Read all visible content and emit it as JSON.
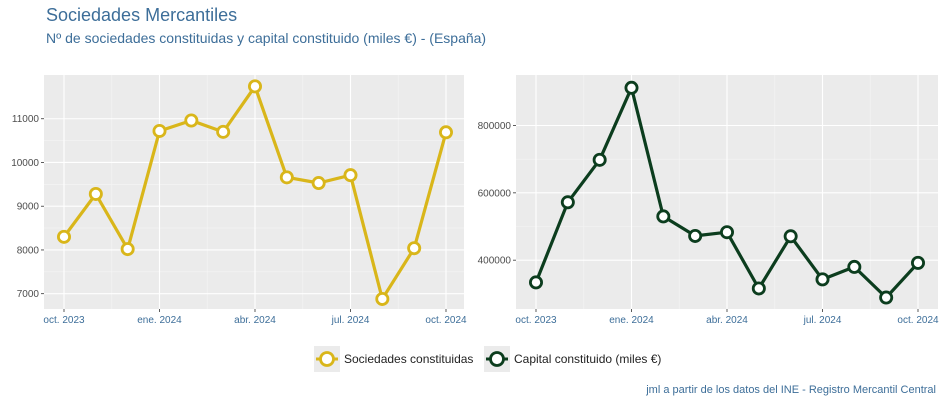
{
  "title": "Sociedades Mercantiles",
  "subtitle": "Nº de sociedades constituidas y capital constituido (miles €) - (España)",
  "caption": "jml a partir de los datos del INE - Registro Mercantil Central",
  "legend": [
    {
      "label": "Sociedades constituidas",
      "color": "#d9b61a"
    },
    {
      "label": "Capital constituido (miles €)",
      "color": "#0c3d1e"
    }
  ],
  "chart_data": [
    {
      "type": "line",
      "title": "Sociedades constituidas",
      "x": [
        "2023-10",
        "2023-11",
        "2023-12",
        "2024-01",
        "2024-02",
        "2024-03",
        "2024-04",
        "2024-05",
        "2024-06",
        "2024-07",
        "2024-08",
        "2024-09",
        "2024-10"
      ],
      "values": [
        8300,
        9280,
        8020,
        10720,
        10960,
        10700,
        11740,
        9660,
        9530,
        9710,
        6880,
        8040,
        10690
      ],
      "xticks": [
        "oct. 2023",
        "ene. 2024",
        "abr. 2024",
        "jul. 2024",
        "oct. 2024"
      ],
      "yticks": [
        7000,
        8000,
        9000,
        10000,
        11000
      ],
      "ylim": [
        6650,
        12000
      ],
      "color": "#d9b61a",
      "grid": true
    },
    {
      "type": "line",
      "title": "Capital constituido (miles €)",
      "x": [
        "2023-10",
        "2023-11",
        "2023-12",
        "2024-01",
        "2024-02",
        "2024-03",
        "2024-04",
        "2024-05",
        "2024-06",
        "2024-07",
        "2024-08",
        "2024-09",
        "2024-10"
      ],
      "values": [
        334000,
        572000,
        698000,
        912000,
        530000,
        472000,
        483000,
        316000,
        471000,
        343000,
        380000,
        289000,
        392000
      ],
      "xticks": [
        "oct. 2023",
        "ene. 2024",
        "abr. 2024",
        "jul. 2024",
        "oct. 2024"
      ],
      "yticks": [
        400000,
        600000,
        800000
      ],
      "ylim": [
        255000,
        950000
      ],
      "color": "#0c3d1e",
      "grid": true
    }
  ]
}
